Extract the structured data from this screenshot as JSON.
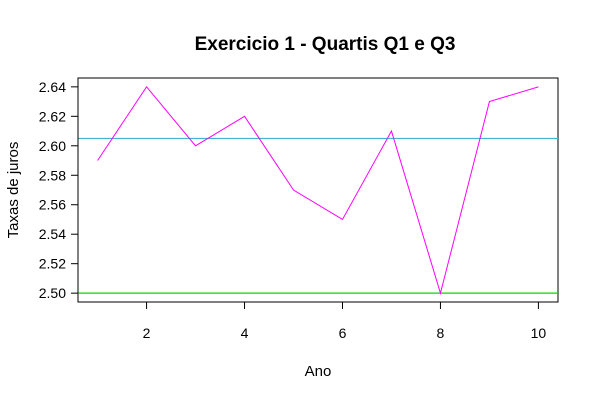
{
  "chart_data": {
    "type": "line",
    "title": "Exercicio 1 - Quartis Q1 e Q3",
    "xlabel": "Ano",
    "ylabel": "Taxas de juros",
    "xlim": [
      0.6,
      10.4
    ],
    "ylim": [
      2.494,
      2.646
    ],
    "x_ticks": [
      2,
      4,
      6,
      8,
      10
    ],
    "y_ticks": [
      2.5,
      2.52,
      2.54,
      2.56,
      2.58,
      2.6,
      2.62,
      2.64
    ],
    "y_tick_labels": [
      "2.50",
      "2.52",
      "2.54",
      "2.56",
      "2.58",
      "2.60",
      "2.62",
      "2.64"
    ],
    "grid": false,
    "series": [
      {
        "x": [
          1,
          2,
          3,
          4,
          5,
          6,
          7,
          8,
          9,
          10
        ],
        "values": [
          2.59,
          2.64,
          2.6,
          2.62,
          2.57,
          2.55,
          2.61,
          2.5,
          2.63,
          2.64
        ],
        "color": "#ff00ff"
      }
    ],
    "hlines": [
      {
        "y": 2.605,
        "color": "#3fb6d6"
      },
      {
        "y": 2.5,
        "color": "#00dd00"
      }
    ]
  }
}
